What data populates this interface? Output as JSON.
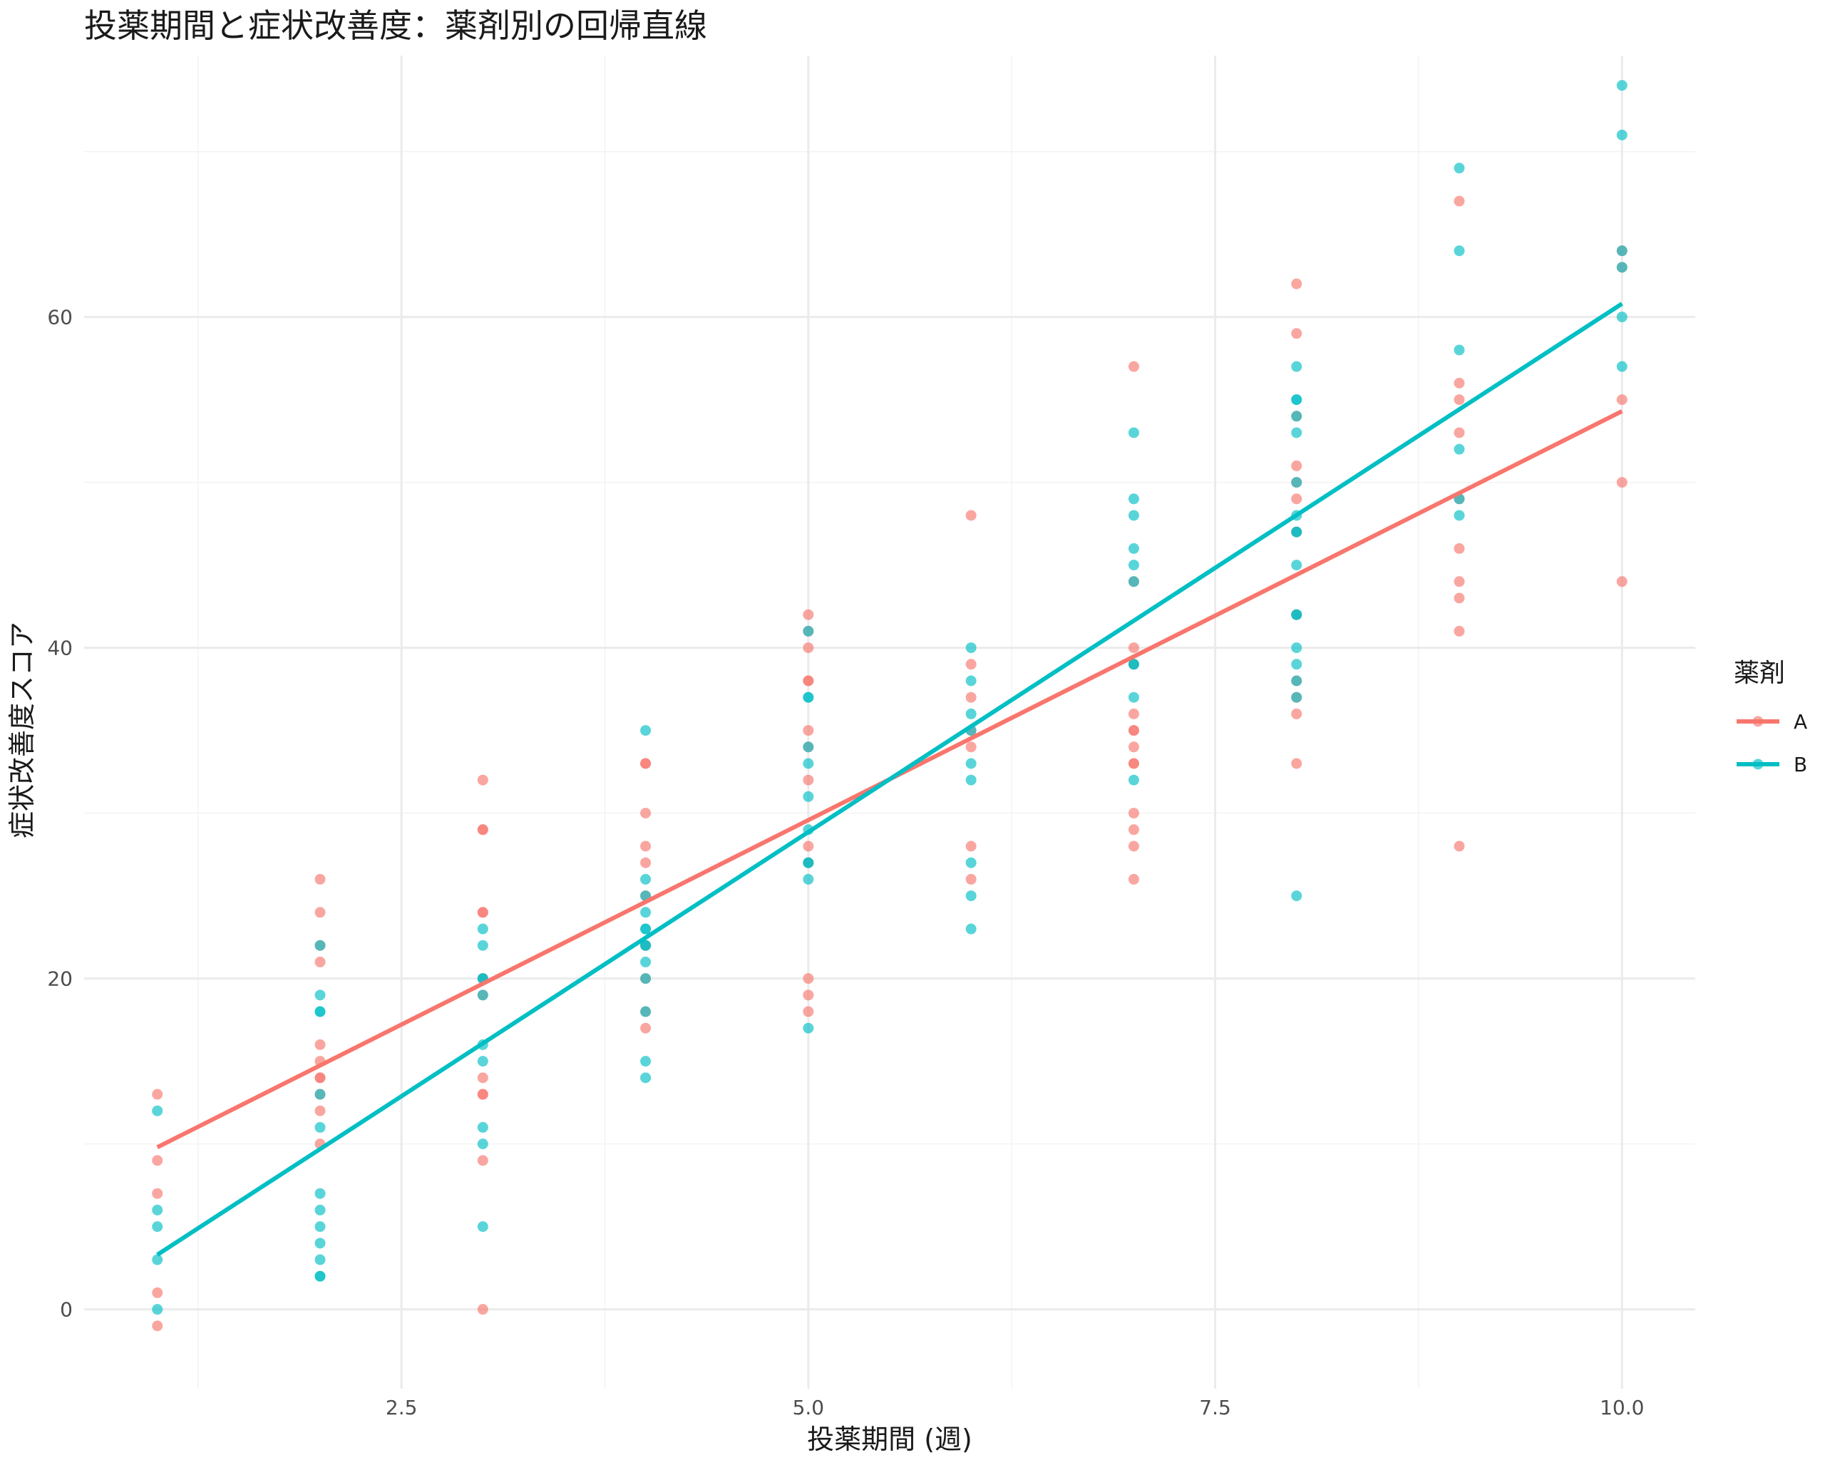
{
  "chart_data": {
    "type": "scatter",
    "title": "投薬期間と症状改善度：薬剤別の回帰直線",
    "xlabel": "投薬期間 (週)",
    "ylabel": "症状改善度スコア",
    "xlim": [
      0.55,
      10.45
    ],
    "ylim": [
      -4.8,
      75.8
    ],
    "x_ticks": [
      2.5,
      5.0,
      7.5,
      10.0
    ],
    "x_tick_labels": [
      "2.5",
      "5.0",
      "7.5",
      "10.0"
    ],
    "y_ticks": [
      0,
      20,
      40,
      60
    ],
    "y_tick_labels": [
      "0",
      "20",
      "40",
      "60"
    ],
    "grid": true,
    "legend": {
      "title": "薬剤",
      "position": "right"
    },
    "series": [
      {
        "name": "A",
        "color": "#F8766D",
        "points": [
          [
            1,
            13
          ],
          [
            1,
            9
          ],
          [
            1,
            7
          ],
          [
            1,
            1
          ],
          [
            1,
            -1
          ],
          [
            2,
            26
          ],
          [
            2,
            24
          ],
          [
            2,
            22
          ],
          [
            2,
            21
          ],
          [
            2,
            16
          ],
          [
            2,
            15
          ],
          [
            2,
            14
          ],
          [
            2,
            14
          ],
          [
            2,
            13
          ],
          [
            2,
            12
          ],
          [
            2,
            10
          ],
          [
            3,
            32
          ],
          [
            3,
            29
          ],
          [
            3,
            29
          ],
          [
            3,
            24
          ],
          [
            3,
            24
          ],
          [
            3,
            20
          ],
          [
            3,
            19
          ],
          [
            3,
            14
          ],
          [
            3,
            13
          ],
          [
            3,
            13
          ],
          [
            3,
            9
          ],
          [
            3,
            0
          ],
          [
            4,
            33
          ],
          [
            4,
            33
          ],
          [
            4,
            30
          ],
          [
            4,
            28
          ],
          [
            4,
            27
          ],
          [
            4,
            25
          ],
          [
            4,
            22
          ],
          [
            4,
            20
          ],
          [
            4,
            18
          ],
          [
            4,
            17
          ],
          [
            5,
            42
          ],
          [
            5,
            41
          ],
          [
            5,
            40
          ],
          [
            5,
            38
          ],
          [
            5,
            38
          ],
          [
            5,
            35
          ],
          [
            5,
            34
          ],
          [
            5,
            32
          ],
          [
            5,
            28
          ],
          [
            5,
            27
          ],
          [
            5,
            20
          ],
          [
            5,
            19
          ],
          [
            5,
            18
          ],
          [
            6,
            48
          ],
          [
            6,
            39
          ],
          [
            6,
            37
          ],
          [
            6,
            35
          ],
          [
            6,
            34
          ],
          [
            6,
            28
          ],
          [
            6,
            26
          ],
          [
            7,
            57
          ],
          [
            7,
            44
          ],
          [
            7,
            40
          ],
          [
            7,
            39
          ],
          [
            7,
            36
          ],
          [
            7,
            35
          ],
          [
            7,
            35
          ],
          [
            7,
            34
          ],
          [
            7,
            33
          ],
          [
            7,
            33
          ],
          [
            7,
            30
          ],
          [
            7,
            29
          ],
          [
            7,
            28
          ],
          [
            7,
            26
          ],
          [
            8,
            62
          ],
          [
            8,
            59
          ],
          [
            8,
            54
          ],
          [
            8,
            51
          ],
          [
            8,
            50
          ],
          [
            8,
            49
          ],
          [
            8,
            47
          ],
          [
            8,
            42
          ],
          [
            8,
            38
          ],
          [
            8,
            37
          ],
          [
            8,
            36
          ],
          [
            8,
            33
          ],
          [
            9,
            67
          ],
          [
            9,
            56
          ],
          [
            9,
            55
          ],
          [
            9,
            53
          ],
          [
            9,
            49
          ],
          [
            9,
            46
          ],
          [
            9,
            44
          ],
          [
            9,
            43
          ],
          [
            9,
            41
          ],
          [
            9,
            28
          ],
          [
            10,
            64
          ],
          [
            10,
            63
          ],
          [
            10,
            55
          ],
          [
            10,
            50
          ],
          [
            10,
            44
          ]
        ],
        "fit": {
          "x": [
            1,
            10
          ],
          "y": [
            9.8,
            54.3
          ]
        }
      },
      {
        "name": "B",
        "color": "#00BFC4",
        "points": [
          [
            1,
            12
          ],
          [
            1,
            6
          ],
          [
            1,
            5
          ],
          [
            1,
            3
          ],
          [
            1,
            0
          ],
          [
            2,
            22
          ],
          [
            2,
            19
          ],
          [
            2,
            18
          ],
          [
            2,
            18
          ],
          [
            2,
            13
          ],
          [
            2,
            11
          ],
          [
            2,
            7
          ],
          [
            2,
            6
          ],
          [
            2,
            5
          ],
          [
            2,
            4
          ],
          [
            2,
            3
          ],
          [
            2,
            2
          ],
          [
            2,
            2
          ],
          [
            3,
            23
          ],
          [
            3,
            22
          ],
          [
            3,
            20
          ],
          [
            3,
            20
          ],
          [
            3,
            19
          ],
          [
            3,
            16
          ],
          [
            3,
            15
          ],
          [
            3,
            11
          ],
          [
            3,
            10
          ],
          [
            3,
            5
          ],
          [
            4,
            35
          ],
          [
            4,
            26
          ],
          [
            4,
            25
          ],
          [
            4,
            24
          ],
          [
            4,
            23
          ],
          [
            4,
            23
          ],
          [
            4,
            22
          ],
          [
            4,
            22
          ],
          [
            4,
            21
          ],
          [
            4,
            20
          ],
          [
            4,
            18
          ],
          [
            4,
            15
          ],
          [
            4,
            14
          ],
          [
            5,
            41
          ],
          [
            5,
            37
          ],
          [
            5,
            37
          ],
          [
            5,
            34
          ],
          [
            5,
            33
          ],
          [
            5,
            31
          ],
          [
            5,
            29
          ],
          [
            5,
            27
          ],
          [
            5,
            27
          ],
          [
            5,
            26
          ],
          [
            5,
            17
          ],
          [
            6,
            40
          ],
          [
            6,
            38
          ],
          [
            6,
            36
          ],
          [
            6,
            35
          ],
          [
            6,
            33
          ],
          [
            6,
            32
          ],
          [
            6,
            27
          ],
          [
            6,
            25
          ],
          [
            6,
            23
          ],
          [
            7,
            53
          ],
          [
            7,
            49
          ],
          [
            7,
            48
          ],
          [
            7,
            46
          ],
          [
            7,
            45
          ],
          [
            7,
            44
          ],
          [
            7,
            39
          ],
          [
            7,
            39
          ],
          [
            7,
            37
          ],
          [
            7,
            32
          ],
          [
            8,
            57
          ],
          [
            8,
            55
          ],
          [
            8,
            55
          ],
          [
            8,
            54
          ],
          [
            8,
            53
          ],
          [
            8,
            50
          ],
          [
            8,
            48
          ],
          [
            8,
            47
          ],
          [
            8,
            47
          ],
          [
            8,
            45
          ],
          [
            8,
            42
          ],
          [
            8,
            42
          ],
          [
            8,
            40
          ],
          [
            8,
            39
          ],
          [
            8,
            38
          ],
          [
            8,
            37
          ],
          [
            8,
            25
          ],
          [
            9,
            69
          ],
          [
            9,
            64
          ],
          [
            9,
            58
          ],
          [
            9,
            52
          ],
          [
            9,
            49
          ],
          [
            9,
            48
          ],
          [
            10,
            74
          ],
          [
            10,
            71
          ],
          [
            10,
            64
          ],
          [
            10,
            63
          ],
          [
            10,
            60
          ],
          [
            10,
            57
          ]
        ],
        "fit": {
          "x": [
            1,
            10
          ],
          "y": [
            3.3,
            60.8
          ]
        }
      }
    ]
  }
}
